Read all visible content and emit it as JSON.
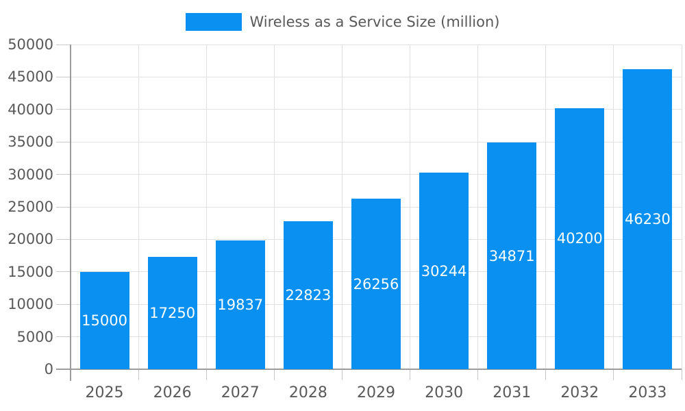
{
  "legend": {
    "label": "Wireless as a Service Size (million)"
  },
  "chart_data": {
    "type": "bar",
    "title": "Wireless as a Service Size (million)",
    "categories": [
      "2025",
      "2026",
      "2027",
      "2028",
      "2029",
      "2030",
      "2031",
      "2032",
      "2033"
    ],
    "values": [
      15000,
      17250,
      19837,
      22823,
      26256,
      30244,
      34871,
      40200,
      46230
    ],
    "bar_labels": [
      "15000",
      "17250",
      "19837",
      "22823",
      "26256",
      "30244",
      "34871",
      "40200",
      "46230"
    ],
    "xlabel": "",
    "ylabel": "",
    "ylim": [
      0,
      50000
    ],
    "yticks": [
      0,
      5000,
      10000,
      15000,
      20000,
      25000,
      30000,
      35000,
      40000,
      45000,
      50000
    ],
    "grid": true,
    "legend_position": "top-center",
    "colors": {
      "bar": "#0a90f0",
      "bar_label_text": "#ffffff",
      "axis_line": "#9c9c9c",
      "gridline": "#e0e0e0",
      "tick_mark": "#c9c9c9",
      "tick_label_text": "#595959",
      "legend_text": "#595959",
      "background": "#ffffff"
    }
  }
}
